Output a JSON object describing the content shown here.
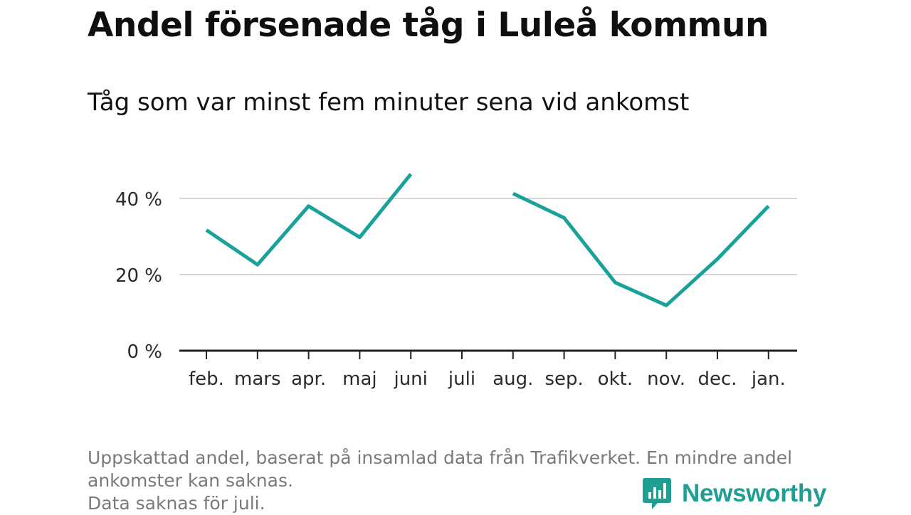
{
  "chart_data": {
    "type": "line",
    "title": "Andel försenade tåg i Luleå kommun",
    "subtitle": "Tåg som var minst fem minuter sena vid ankomst",
    "categories": [
      "feb.",
      "mars",
      "apr.",
      "maj",
      "juni",
      "juli",
      "aug.",
      "sep.",
      "okt.",
      "nov.",
      "dec.",
      "jan."
    ],
    "series": [
      {
        "values": [
          31.7,
          22.6,
          38.0,
          29.8,
          46.4,
          null,
          41.3,
          34.9,
          17.9,
          11.9,
          24.1,
          38.0
        ],
        "color": "#1aa19a"
      }
    ],
    "yticks": [
      {
        "value": 0,
        "label": "0 %"
      },
      {
        "value": 20,
        "label": "20 %"
      },
      {
        "value": 40,
        "label": "40 %"
      }
    ],
    "ylim": [
      0,
      50
    ],
    "grid": true,
    "legend": false
  },
  "footnote": {
    "line1": "Uppskattad andel, baserat på insamlad data från Trafikverket. En mindre andel",
    "line2": "ankomster kan saknas.",
    "line3": "Data saknas för juli."
  },
  "brand": {
    "name": "Newsworthy",
    "icon": "bar-chart-logo-icon",
    "color": "#1f9e94"
  }
}
